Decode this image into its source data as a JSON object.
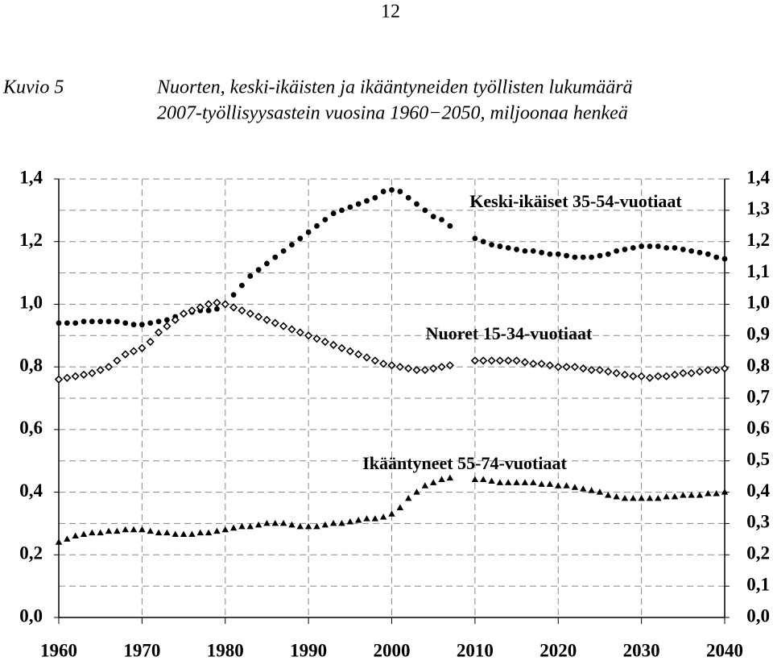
{
  "page_number": "12",
  "figure_label": "Kuvio 5",
  "chart_data": {
    "type": "line",
    "title": "Nuorten, keski-ikäisten ja ikääntyneiden työllisten lukumäärä",
    "subtitle": "2007-työllisyysastein vuosina 1960−2050, miljoonaa henkeä",
    "x": [
      1960,
      1961,
      1962,
      1963,
      1964,
      1965,
      1966,
      1967,
      1968,
      1969,
      1970,
      1971,
      1972,
      1973,
      1974,
      1975,
      1976,
      1977,
      1978,
      1979,
      1980,
      1981,
      1982,
      1983,
      1984,
      1985,
      1986,
      1987,
      1988,
      1989,
      1990,
      1991,
      1992,
      1993,
      1994,
      1995,
      1996,
      1997,
      1998,
      1999,
      2000,
      2001,
      2002,
      2003,
      2004,
      2005,
      2006,
      2007,
      2008,
      2009,
      2010,
      2011,
      2012,
      2013,
      2014,
      2015,
      2016,
      2017,
      2018,
      2019,
      2020,
      2021,
      2022,
      2023,
      2024,
      2025,
      2026,
      2027,
      2028,
      2029,
      2030,
      2031,
      2032,
      2033,
      2034,
      2035,
      2036,
      2037,
      2038,
      2039,
      2040
    ],
    "series": [
      {
        "name": "Keski-ikäiset 35-54-vuotiaat",
        "color": "#000000",
        "marker": "circle",
        "values": [
          0.94,
          0.94,
          0.94,
          0.945,
          0.945,
          0.945,
          0.945,
          0.945,
          0.94,
          0.935,
          0.935,
          0.94,
          0.945,
          0.95,
          0.96,
          0.97,
          0.975,
          0.98,
          0.98,
          0.985,
          1.0,
          1.03,
          1.06,
          1.09,
          1.11,
          1.13,
          1.15,
          1.17,
          1.19,
          1.21,
          1.23,
          1.25,
          1.27,
          1.29,
          1.3,
          1.31,
          1.32,
          1.33,
          1.34,
          1.36,
          1.365,
          1.36,
          1.34,
          1.32,
          1.3,
          1.28,
          1.27,
          1.25,
          null,
          null,
          1.21,
          1.2,
          1.19,
          1.185,
          1.18,
          1.175,
          1.17,
          1.17,
          1.165,
          1.16,
          1.16,
          1.155,
          1.15,
          1.15,
          1.15,
          1.155,
          1.16,
          1.17,
          1.175,
          1.18,
          1.185,
          1.185,
          1.185,
          1.18,
          1.18,
          1.175,
          1.17,
          1.165,
          1.16,
          1.15,
          1.145
        ]
      },
      {
        "name": "Nuoret 15-34-vuotiaat",
        "color": "#000000",
        "marker": "diamond",
        "values": [
          0.76,
          0.765,
          0.77,
          0.775,
          0.78,
          0.79,
          0.8,
          0.82,
          0.84,
          0.85,
          0.86,
          0.88,
          0.91,
          0.93,
          0.95,
          0.97,
          0.98,
          0.99,
          1.0,
          1.005,
          1.0,
          0.99,
          0.98,
          0.97,
          0.96,
          0.95,
          0.94,
          0.93,
          0.92,
          0.91,
          0.9,
          0.89,
          0.88,
          0.87,
          0.86,
          0.85,
          0.84,
          0.83,
          0.82,
          0.81,
          0.805,
          0.8,
          0.795,
          0.79,
          0.79,
          0.795,
          0.8,
          0.805,
          null,
          null,
          0.82,
          0.82,
          0.82,
          0.82,
          0.82,
          0.82,
          0.815,
          0.81,
          0.81,
          0.805,
          0.8,
          0.8,
          0.8,
          0.795,
          0.79,
          0.79,
          0.785,
          0.78,
          0.775,
          0.77,
          0.77,
          0.765,
          0.77,
          0.77,
          0.775,
          0.78,
          0.78,
          0.785,
          0.79,
          0.79,
          0.795
        ]
      },
      {
        "name": "Ikääntyneet 55-74-vuotiaat",
        "color": "#000000",
        "marker": "triangle",
        "values": [
          0.24,
          0.25,
          0.26,
          0.265,
          0.27,
          0.27,
          0.275,
          0.275,
          0.28,
          0.28,
          0.28,
          0.275,
          0.27,
          0.27,
          0.265,
          0.265,
          0.265,
          0.27,
          0.27,
          0.275,
          0.28,
          0.285,
          0.29,
          0.29,
          0.295,
          0.3,
          0.3,
          0.3,
          0.295,
          0.29,
          0.29,
          0.29,
          0.295,
          0.3,
          0.3,
          0.305,
          0.31,
          0.315,
          0.315,
          0.32,
          0.33,
          0.35,
          0.38,
          0.4,
          0.42,
          0.43,
          0.44,
          0.445,
          null,
          null,
          0.44,
          0.44,
          0.435,
          0.43,
          0.43,
          0.43,
          0.43,
          0.43,
          0.425,
          0.425,
          0.42,
          0.42,
          0.415,
          0.41,
          0.405,
          0.4,
          0.39,
          0.385,
          0.38,
          0.38,
          0.38,
          0.38,
          0.38,
          0.385,
          0.385,
          0.39,
          0.39,
          0.39,
          0.395,
          0.395,
          0.4
        ]
      }
    ],
    "xlim": [
      1960,
      2040
    ],
    "xticks": [
      1960,
      1970,
      1980,
      1990,
      2000,
      2010,
      2020,
      2030,
      2040
    ],
    "ylim": [
      0,
      1.4
    ],
    "yticks": [
      {
        "value": 0,
        "label": "0,0"
      },
      {
        "value": 0.2,
        "label": "0,2"
      },
      {
        "value": 0.4,
        "label": "0,4"
      },
      {
        "value": 0.6,
        "label": "0,6"
      },
      {
        "value": 0.8,
        "label": "0,8"
      },
      {
        "value": 1.0,
        "label": "1,0"
      },
      {
        "value": 1.2,
        "label": "1,2"
      },
      {
        "value": 1.4,
        "label": "1,4"
      }
    ],
    "y2lim": [
      0,
      1.4
    ],
    "y2ticks": [
      {
        "value": 0,
        "label": "0,0"
      },
      {
        "value": 0.1,
        "label": "0,1"
      },
      {
        "value": 0.2,
        "label": "0,2"
      },
      {
        "value": 0.3,
        "label": "0,3"
      },
      {
        "value": 0.4,
        "label": "0,4"
      },
      {
        "value": 0.5,
        "label": "0,5"
      },
      {
        "value": 0.6,
        "label": "0,6"
      },
      {
        "value": 0.7,
        "label": "0,7"
      },
      {
        "value": 0.8,
        "label": "0,8"
      },
      {
        "value": 0.9,
        "label": "0,9"
      },
      {
        "value": 1.0,
        "label": "1,0"
      },
      {
        "value": 1.1,
        "label": "1,1"
      },
      {
        "value": 1.2,
        "label": "1,2"
      },
      {
        "value": 1.3,
        "label": "1,3"
      },
      {
        "value": 1.4,
        "label": "1,4"
      }
    ],
    "grid": true
  }
}
